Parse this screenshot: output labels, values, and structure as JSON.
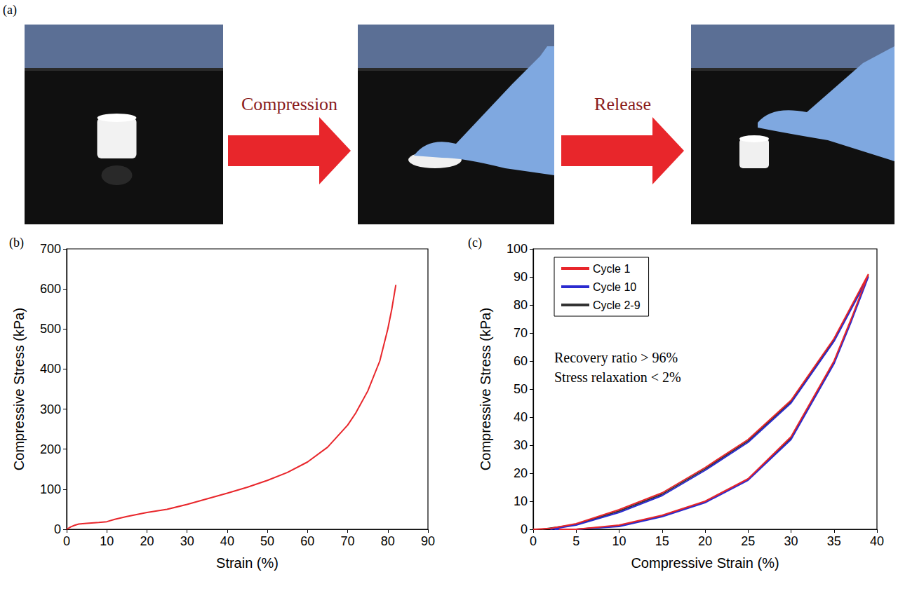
{
  "panel_a": {
    "label": "(a)",
    "steps": [
      "Compression",
      "Release"
    ]
  },
  "chart_data": [
    {
      "type": "line",
      "title": "(b)",
      "x_label": "Strain (%)",
      "y_label": "Compressive Stress (kPa)",
      "color": "#e8262b",
      "x": [
        0,
        1,
        2,
        3,
        5,
        8,
        10,
        12,
        15,
        20,
        25,
        30,
        35,
        40,
        45,
        50,
        55,
        60,
        65,
        70,
        72,
        75,
        78,
        80,
        81,
        82
      ],
      "values": [
        0,
        6,
        10,
        13,
        15,
        17,
        19,
        25,
        32,
        42,
        50,
        62,
        76,
        90,
        105,
        122,
        142,
        168,
        205,
        260,
        290,
        345,
        420,
        500,
        550,
        610
      ],
      "xlim": [
        0,
        90
      ],
      "xticks": [
        0,
        10,
        20,
        30,
        40,
        50,
        60,
        70,
        80,
        90
      ],
      "ylim": [
        0,
        700
      ],
      "yticks": [
        0,
        100,
        200,
        300,
        400,
        500,
        600,
        700
      ],
      "grid": false
    },
    {
      "type": "line",
      "title": "(c)",
      "x_label": "Compressive Strain (%)",
      "y_label": "Compressive Stress (kPa)",
      "annotations": [
        "Recovery ratio > 96%",
        "Stress relaxation < 2%"
      ],
      "series": [
        {
          "name": "Cycle 1",
          "color": "#e8262b",
          "x": [
            0,
            2,
            5,
            10,
            15,
            20,
            25,
            30,
            35,
            39,
            37,
            35,
            30,
            25,
            20,
            15,
            10,
            5,
            3
          ],
          "values": [
            0,
            0.3,
            2,
            7,
            13,
            22,
            32,
            46,
            68,
            91,
            75,
            60,
            33,
            18,
            10,
            5,
            1.5,
            0,
            0
          ]
        },
        {
          "name": "Cycle 10",
          "color": "#2b2bd0",
          "x": [
            2,
            5,
            10,
            15,
            20,
            25,
            30,
            35,
            39,
            37,
            35,
            30,
            25,
            20,
            15,
            10,
            5,
            2.5
          ],
          "values": [
            0,
            1.5,
            6,
            12,
            21,
            31,
            45,
            67,
            90,
            74,
            59,
            32,
            17.5,
            9.5,
            4.5,
            1,
            0,
            0
          ]
        },
        {
          "name": "Cycle 2-9",
          "color": "#333333",
          "x": [
            1,
            5,
            10,
            15,
            20,
            25,
            30,
            35,
            39,
            37,
            35,
            30,
            25,
            20,
            15,
            10,
            5,
            2.5
          ],
          "values": [
            0,
            1.7,
            6.5,
            12.5,
            21.5,
            31.5,
            45.5,
            67.5,
            90.5,
            74.5,
            59.5,
            32.5,
            17.8,
            9.8,
            4.8,
            1.2,
            0,
            0
          ]
        }
      ],
      "xlim": [
        0,
        40
      ],
      "xticks": [
        0,
        5,
        10,
        15,
        20,
        25,
        30,
        35,
        40
      ],
      "ylim": [
        0,
        100
      ],
      "yticks": [
        0,
        10,
        20,
        30,
        40,
        50,
        60,
        70,
        80,
        90,
        100
      ],
      "legend": "upper left",
      "grid": false
    }
  ]
}
